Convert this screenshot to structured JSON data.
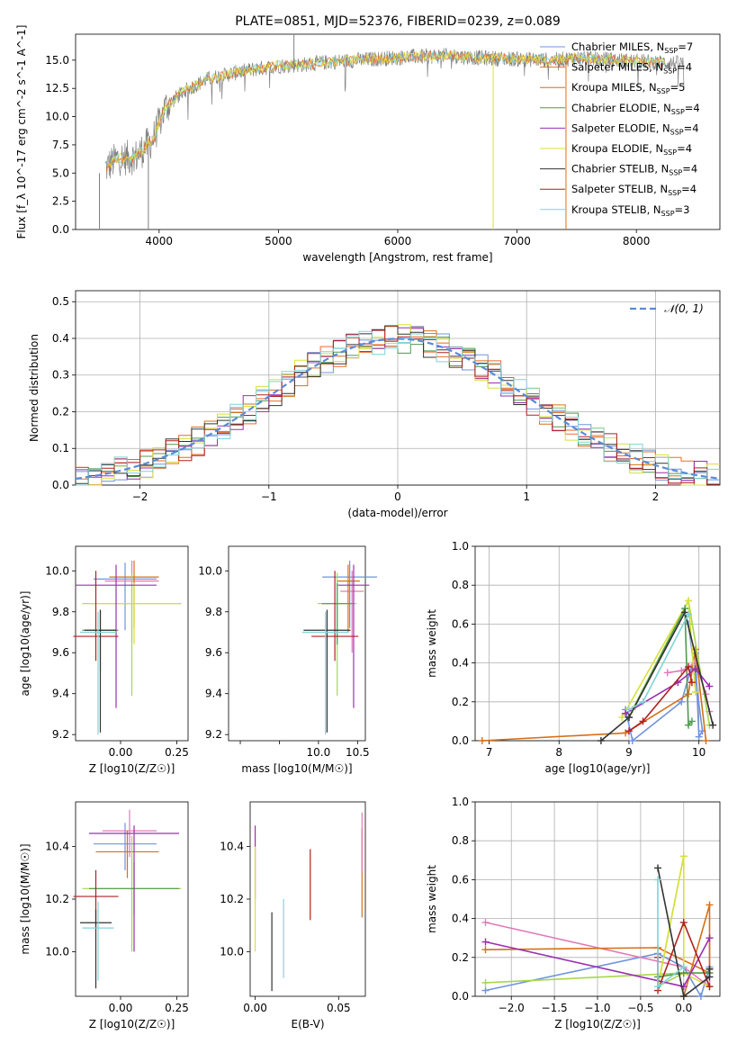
{
  "figure_title": "PLATE=0851, MJD=52376, FIBERID=0239, z=0.089",
  "colors": {
    "chabrier_miles": "#6f93dd",
    "salpeter_miles": "#ef6a2a",
    "kroupa_miles": "#d6701a",
    "chabrier_elodie": "#4f9a4f",
    "salpeter_elodie": "#9a2fb0",
    "kroupa_elodie": "#d8e03c",
    "chabrier_stelib": "#333333",
    "salpeter_stelib": "#b02020",
    "kroupa_stelib": "#7fd4d8",
    "data": "#808080",
    "pink": "#e07ab8",
    "lime": "#a6d84a"
  },
  "legend": [
    {
      "label": "Chabrier MILES, N",
      "sub": "SSP",
      "n": "=7",
      "color": "#6f93dd"
    },
    {
      "label": "Salpeter MILES, N",
      "sub": "SSP",
      "n": "=4",
      "color": "#ef6a2a"
    },
    {
      "label": "Kroupa MILES, N",
      "sub": "SSP",
      "n": "=5",
      "color": "#d6701a"
    },
    {
      "label": "Chabrier ELODIE, N",
      "sub": "SSP",
      "n": "=4",
      "color": "#4f9a4f"
    },
    {
      "label": "Salpeter ELODIE, N",
      "sub": "SSP",
      "n": "=4",
      "color": "#9a2fb0"
    },
    {
      "label": "Kroupa ELODIE, N",
      "sub": "SSP",
      "n": "=4",
      "color": "#d8e03c"
    },
    {
      "label": "Chabrier STELIB, N",
      "sub": "SSP",
      "n": "=4",
      "color": "#333333"
    },
    {
      "label": "Salpeter STELIB, N",
      "sub": "SSP",
      "n": "=4",
      "color": "#b02020"
    },
    {
      "label": "Kroupa STELIB, N",
      "sub": "SSP",
      "n": "=3",
      "color": "#7fd4d8"
    }
  ],
  "chart_data": [
    {
      "id": "spectrum",
      "type": "line",
      "title": "PLATE=0851, MJD=52376, FIBERID=0239, z=0.089",
      "xlabel": "wavelength [Angstrom, rest frame]",
      "ylabel": "Flux [f_λ 10^-17 erg cm^-2 s^-1 A^-1]",
      "xlim": [
        3300,
        8700
      ],
      "ylim": [
        0,
        17.3
      ],
      "xticks": [
        4000,
        5000,
        6000,
        7000,
        8000
      ],
      "yticks": [
        0.0,
        2.5,
        5.0,
        7.5,
        10.0,
        12.5,
        15.0
      ],
      "grid": false,
      "legend_position": "top-right",
      "continuum": {
        "x": [
          3500,
          3650,
          3800,
          3950,
          4050,
          4200,
          4400,
          4600,
          4800,
          5000,
          5200,
          5500,
          5800,
          6100,
          6400,
          6700,
          7000,
          7300,
          7500,
          8000,
          8400
        ],
        "y": [
          5.0,
          6.3,
          6.4,
          8.0,
          10.8,
          12.2,
          13.3,
          13.8,
          14.2,
          14.5,
          14.6,
          14.9,
          15.1,
          15.3,
          15.4,
          15.2,
          15.1,
          15.0,
          15.2,
          14.9,
          14.7
        ]
      },
      "spikes": [
        {
          "x": 3500,
          "y": 0.0
        },
        {
          "x": 3910,
          "y": 0.0
        },
        {
          "x": 5130,
          "y": 17.3
        },
        {
          "x": 6800,
          "y": 0.0
        },
        {
          "x": 7410,
          "y": 0.0
        }
      ]
    },
    {
      "id": "residuals",
      "type": "histogram",
      "xlabel": "(data-model)/error",
      "ylabel": "Normed distribution",
      "xlim": [
        -2.5,
        2.5
      ],
      "ylim": [
        0,
        0.53
      ],
      "xticks": [
        -2,
        -1,
        0,
        1,
        2
      ],
      "yticks": [
        0.0,
        0.1,
        0.2,
        0.3,
        0.4,
        0.5
      ],
      "grid": true,
      "legend": {
        "label": "N(0,1)",
        "position": "top-right"
      },
      "bin_width": 0.1
    },
    {
      "id": "age_vs_Z",
      "type": "scatter",
      "xlabel": "Z [log10(Z/Z☉)]",
      "ylabel": "age  [log10(age/yr)]",
      "xlim": [
        -0.2,
        0.3
      ],
      "ylim": [
        9.17,
        10.12
      ],
      "xticks": [
        0.0,
        0.25
      ],
      "yticks": [
        9.2,
        9.4,
        9.6,
        9.8,
        10.0
      ],
      "points": [
        {
          "x": 0.02,
          "y": 9.96,
          "xerr": 0.14,
          "yerr": [
            0.25,
            0.08
          ],
          "color": "#6f93dd"
        },
        {
          "x": 0.05,
          "y": 9.95,
          "xerr": 0.12,
          "yerr": [
            0.3,
            0.1
          ],
          "color": "#e07ab8"
        },
        {
          "x": 0.06,
          "y": 9.97,
          "xerr": 0.11,
          "yerr": [
            0.25,
            0.08
          ],
          "color": "#d6701a"
        },
        {
          "x": 0.05,
          "y": 9.84,
          "xerr": 0.22,
          "yerr": [
            0.45,
            0.15
          ],
          "color": "#a6d84a"
        },
        {
          "x": 0.06,
          "y": 9.84,
          "xerr": 0.2,
          "yerr": [
            0.2,
            0.1
          ],
          "color": "#d8e03c"
        },
        {
          "x": -0.02,
          "y": 9.93,
          "xerr": 0.18,
          "yerr": [
            0.6,
            0.1
          ],
          "color": "#9a2fb0"
        },
        {
          "x": -0.11,
          "y": 9.68,
          "xerr": 0.1,
          "yerr": [
            0.12,
            0.32
          ],
          "color": "#b02020"
        },
        {
          "x": -0.09,
          "y": 9.71,
          "xerr": 0.08,
          "yerr": [
            0.2,
            0.1
          ],
          "color": "#4f9a4f"
        },
        {
          "x": -0.09,
          "y": 9.71,
          "xerr": 0.07,
          "yerr": [
            0.5,
            0.1
          ],
          "color": "#333333"
        },
        {
          "x": -0.1,
          "y": 9.7,
          "xerr": 0.08,
          "yerr": [
            0.5,
            0.1
          ],
          "color": "#7fd4d8"
        }
      ]
    },
    {
      "id": "age_vs_mass",
      "type": "scatter",
      "xlabel": "mass [log10(M/M☉)]",
      "ylabel": "",
      "xlim": [
        8.85,
        10.6
      ],
      "ylim": [
        9.17,
        10.12
      ],
      "xticks": [
        9.0,
        9.5,
        10.0,
        10.5
      ],
      "xticklabels": [
        "",
        "",
        "10.0",
        "10.5"
      ],
      "yticks": [
        9.2,
        9.4,
        9.6,
        9.8,
        10.0
      ],
      "points": [
        {
          "x": 10.4,
          "y": 9.97,
          "xerr": 0.35,
          "yerr": [
            0.25,
            0.08
          ],
          "color": "#6f93dd"
        },
        {
          "x": 10.43,
          "y": 9.9,
          "xerr": 0.15,
          "yerr": [
            0.3,
            0.1
          ],
          "color": "#e07ab8"
        },
        {
          "x": 10.38,
          "y": 9.95,
          "xerr": 0.15,
          "yerr": [
            0.25,
            0.08
          ],
          "color": "#d6701a"
        },
        {
          "x": 10.24,
          "y": 9.84,
          "xerr": 0.25,
          "yerr": [
            0.45,
            0.15
          ],
          "color": "#a6d84a"
        },
        {
          "x": 10.24,
          "y": 9.84,
          "xerr": 0.2,
          "yerr": [
            0.2,
            0.1
          ],
          "color": "#4f9a4f"
        },
        {
          "x": 10.45,
          "y": 9.93,
          "xerr": 0.2,
          "yerr": [
            0.6,
            0.1
          ],
          "color": "#9a2fb0"
        },
        {
          "x": 10.21,
          "y": 9.68,
          "xerr": 0.3,
          "yerr": [
            0.12,
            0.32
          ],
          "color": "#b02020"
        },
        {
          "x": 10.11,
          "y": 9.71,
          "xerr": 0.3,
          "yerr": [
            0.5,
            0.1
          ],
          "color": "#333333"
        },
        {
          "x": 10.09,
          "y": 9.7,
          "xerr": 0.3,
          "yerr": [
            0.5,
            0.1
          ],
          "color": "#7fd4d8"
        }
      ]
    },
    {
      "id": "weight_vs_age",
      "type": "line",
      "xlabel": "age  [log10(age/yr)]",
      "ylabel": "mass weight",
      "xlim": [
        6.8,
        10.3
      ],
      "ylim": [
        0,
        1.0
      ],
      "xticks": [
        7,
        8,
        9,
        10
      ],
      "yticks": [
        0.0,
        0.2,
        0.4,
        0.6,
        0.8,
        1.0
      ],
      "grid": true,
      "series": [
        {
          "color": "#6f93dd",
          "x": [
            8.95,
            9.05,
            9.75,
            9.95,
            10.0,
            10.05,
            9.85
          ],
          "y": [
            0.16,
            0.0,
            0.2,
            0.45,
            0.02,
            0.05,
            0.6
          ]
        },
        {
          "color": "#e07ab8",
          "x": [
            9.55,
            9.75,
            9.95,
            10.1,
            10.15
          ],
          "y": [
            0.35,
            0.36,
            0.4,
            0.24,
            0.15
          ]
        },
        {
          "color": "#d6701a",
          "x": [
            6.9,
            8.95,
            9.85,
            9.95,
            10.1
          ],
          "y": [
            0.0,
            0.04,
            0.24,
            0.47,
            0.0
          ]
        },
        {
          "color": "#a6d84a",
          "x": [
            9.05,
            9.85,
            10.15
          ],
          "y": [
            0.16,
            0.72,
            0.08
          ]
        },
        {
          "color": "#d8e03c",
          "x": [
            8.9,
            9.85,
            9.95
          ],
          "y": [
            0.12,
            0.72,
            0.25
          ]
        },
        {
          "color": "#4f9a4f",
          "x": [
            9.0,
            9.8,
            9.85,
            9.9
          ],
          "y": [
            0.12,
            0.68,
            0.08,
            0.1
          ]
        },
        {
          "color": "#9a2fb0",
          "x": [
            8.95,
            9.7,
            9.95,
            10.15
          ],
          "y": [
            0.14,
            0.3,
            0.37,
            0.28
          ]
        },
        {
          "color": "#b02020",
          "x": [
            9.0,
            9.2,
            9.85,
            9.9
          ],
          "y": [
            0.05,
            0.1,
            0.38,
            0.3
          ]
        },
        {
          "color": "#333333",
          "x": [
            8.6,
            9.0,
            9.8,
            10.2
          ],
          "y": [
            0.0,
            0.12,
            0.66,
            0.08
          ]
        },
        {
          "color": "#7fd4d8",
          "x": [
            9.0,
            9.2,
            9.85
          ],
          "y": [
            0.16,
            0.2,
            0.65
          ]
        }
      ]
    },
    {
      "id": "mass_vs_Z",
      "type": "scatter",
      "xlabel": "Z [log10(Z/Z☉)]",
      "ylabel": "mass [log10(M/M☉)]",
      "xlim": [
        -0.2,
        0.3
      ],
      "ylim": [
        9.83,
        10.57
      ],
      "xticks": [
        0.0,
        0.25
      ],
      "yticks": [
        10.0,
        10.2,
        10.4
      ],
      "points": [
        {
          "x": 0.02,
          "y": 10.41,
          "xerr": 0.14,
          "yerr": [
            0.1,
            0.08
          ],
          "color": "#6f93dd"
        },
        {
          "x": 0.04,
          "y": 10.46,
          "xerr": 0.12,
          "yerr": [
            0.1,
            0.08
          ],
          "color": "#e07ab8"
        },
        {
          "x": 0.03,
          "y": 10.38,
          "xerr": 0.14,
          "yerr": [
            0.1,
            0.08
          ],
          "color": "#d6701a"
        },
        {
          "x": 0.05,
          "y": 10.24,
          "xerr": 0.22,
          "yerr": [
            0.24,
            0.2
          ],
          "color": "#a6d84a"
        },
        {
          "x": 0.06,
          "y": 10.24,
          "xerr": 0.2,
          "yerr": [
            0.1,
            0.1
          ],
          "color": "#4f9a4f"
        },
        {
          "x": 0.06,
          "y": 10.45,
          "xerr": 0.2,
          "yerr": [
            0.45,
            0.03
          ],
          "color": "#9a2fb0"
        },
        {
          "x": -0.11,
          "y": 10.21,
          "xerr": 0.1,
          "yerr": [
            0.12,
            0.1
          ],
          "color": "#b02020"
        },
        {
          "x": -0.11,
          "y": 10.11,
          "xerr": 0.07,
          "yerr": [
            0.25,
            0.05
          ],
          "color": "#333333"
        },
        {
          "x": -0.1,
          "y": 10.09,
          "xerr": 0.07,
          "yerr": [
            0.2,
            0.1
          ],
          "color": "#7fd4d8"
        }
      ]
    },
    {
      "id": "mass_vs_ebv",
      "type": "scatter",
      "xlabel": "E(B-V)",
      "ylabel": "",
      "xlim": [
        -0.003,
        0.066
      ],
      "ylim": [
        9.83,
        10.57
      ],
      "xticks": [
        0.0,
        0.05
      ],
      "yticks": [
        10.0,
        10.2,
        10.4
      ],
      "points": [
        {
          "x": 0.0,
          "y": 10.4,
          "xerr": 0,
          "yerr": [
            0.2,
            0.08
          ],
          "color": "#9a2fb0"
        },
        {
          "x": 0.0,
          "y": 10.2,
          "xerr": 0,
          "yerr": [
            0.2,
            0.2
          ],
          "color": "#d8e03c"
        },
        {
          "x": 0.01,
          "y": 10.0,
          "xerr": 0,
          "yerr": [
            0.15,
            0.15
          ],
          "color": "#333333"
        },
        {
          "x": 0.017,
          "y": 10.05,
          "xerr": 0,
          "yerr": [
            0.15,
            0.15
          ],
          "color": "#7fd4d8"
        },
        {
          "x": 0.033,
          "y": 10.25,
          "xerr": 0,
          "yerr": [
            0.13,
            0.14
          ],
          "color": "#b02020"
        },
        {
          "x": 0.064,
          "y": 10.3,
          "xerr": 0,
          "yerr": [
            0.17,
            0.17
          ],
          "color": "#d6701a"
        },
        {
          "x": 0.064,
          "y": 10.4,
          "xerr": 0,
          "yerr": [
            0.1,
            0.13
          ],
          "color": "#e07ab8"
        }
      ]
    },
    {
      "id": "weight_vs_Z",
      "type": "line",
      "xlabel": "Z [log10(Z/Z☉)]",
      "ylabel": "mass weight",
      "xlim": [
        -2.42,
        0.42
      ],
      "ylim": [
        0,
        1.0
      ],
      "xticks": [
        -2.0,
        -1.5,
        -1.0,
        -0.5,
        0.0
      ],
      "yticks": [
        0.0,
        0.2,
        0.4,
        0.6,
        0.8,
        1.0
      ],
      "grid": true,
      "series": [
        {
          "color": "#6f93dd",
          "x": [
            -2.3,
            -0.3,
            0.0,
            0.2,
            0.3
          ],
          "y": [
            0.03,
            0.22,
            0.15,
            0.0,
            0.15
          ]
        },
        {
          "color": "#e07ab8",
          "x": [
            -2.3,
            0.0,
            0.3,
            0.3
          ],
          "y": [
            0.38,
            0.15,
            0.05,
            0.3
          ]
        },
        {
          "color": "#d6701a",
          "x": [
            -2.3,
            -0.3,
            0.3,
            0.3,
            0.0
          ],
          "y": [
            0.24,
            0.25,
            0.12,
            0.47,
            0.0
          ]
        },
        {
          "color": "#a6d84a",
          "x": [
            -2.3,
            0.0,
            -0.3,
            0.0
          ],
          "y": [
            0.07,
            0.12,
            0.05,
            0.72
          ]
        },
        {
          "color": "#d8e03c",
          "x": [
            -0.3,
            0.0,
            0.0,
            0.3
          ],
          "y": [
            0.05,
            0.72,
            0.12,
            0.05
          ]
        },
        {
          "color": "#4f9a4f",
          "x": [
            -0.3,
            0.0,
            0.3
          ],
          "y": [
            0.1,
            0.12,
            0.12
          ]
        },
        {
          "color": "#9a2fb0",
          "x": [
            -2.3,
            0.0,
            0.3
          ],
          "y": [
            0.28,
            0.05,
            0.3
          ]
        },
        {
          "color": "#b02020",
          "x": [
            -0.3,
            -0.3,
            0.0,
            0.3
          ],
          "y": [
            0.2,
            0.03,
            0.38,
            0.05
          ]
        },
        {
          "color": "#333333",
          "x": [
            -0.3,
            0.0,
            0.3,
            0.3
          ],
          "y": [
            0.66,
            0.0,
            0.1,
            0.14
          ]
        },
        {
          "color": "#7fd4d8",
          "x": [
            -0.3,
            -0.3,
            0.0
          ],
          "y": [
            0.6,
            0.05,
            0.15
          ]
        }
      ]
    }
  ]
}
